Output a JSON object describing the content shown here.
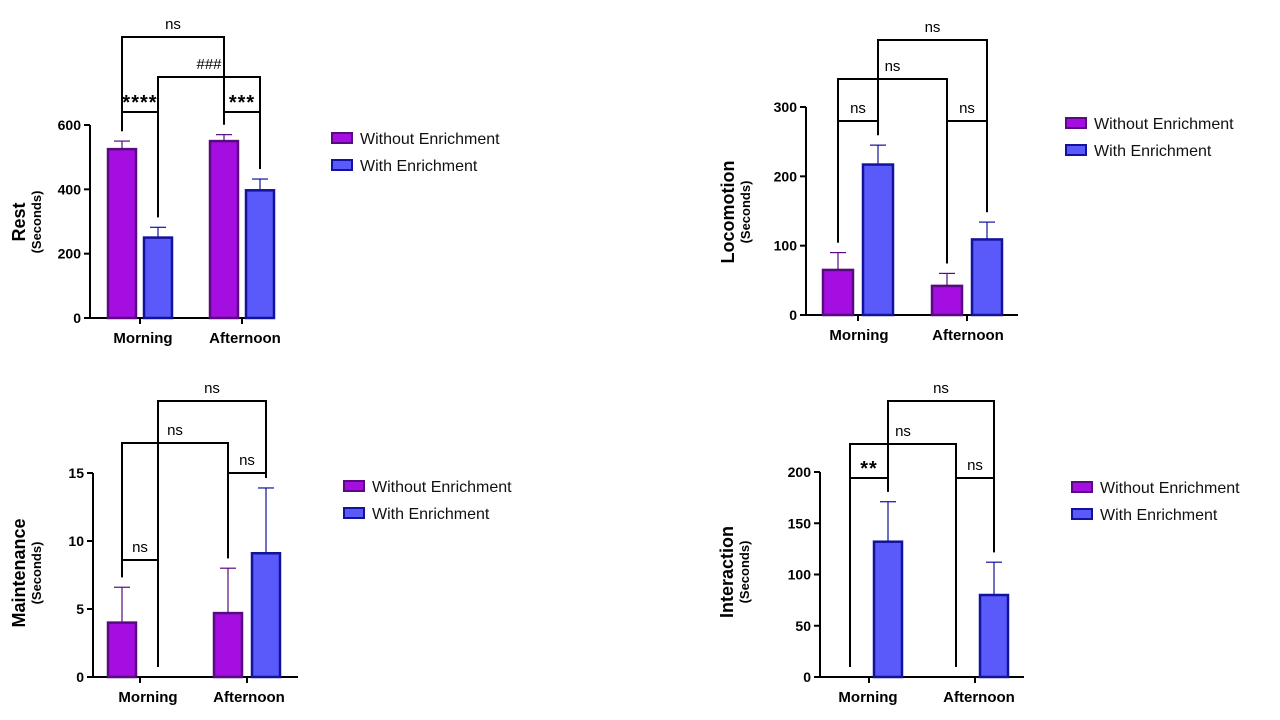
{
  "colors": {
    "without": "#a50ee0",
    "with": "#5a5afa",
    "without_border": "#5a0a80",
    "with_border": "#12129a"
  },
  "legend": {
    "without": "Without Enrichment",
    "with": "With Enrichment"
  },
  "chart_data": [
    {
      "type": "bar",
      "id": "rest",
      "ylabel": "Rest",
      "ylabel_unit": "(Seconds)",
      "categories": [
        "Morning",
        "Afternoon"
      ],
      "ylim": [
        0,
        600
      ],
      "yticks": [
        0,
        200,
        400,
        600
      ],
      "series": [
        {
          "name": "Without Enrichment",
          "values": [
            525,
            550
          ],
          "errors": [
            25,
            20
          ]
        },
        {
          "name": "With Enrichment",
          "values": [
            250,
            397
          ],
          "errors": [
            32,
            35
          ]
        }
      ],
      "comparisons": [
        {
          "label": "****",
          "from": [
            0,
            0
          ],
          "to": [
            0,
            1
          ]
        },
        {
          "label": "***",
          "from": [
            1,
            0
          ],
          "to": [
            1,
            1
          ]
        },
        {
          "label": "###",
          "from": [
            0,
            1
          ],
          "to": [
            1,
            1
          ]
        },
        {
          "label": "ns",
          "from": [
            0,
            0
          ],
          "to": [
            1,
            0
          ]
        }
      ]
    },
    {
      "type": "bar",
      "id": "locomotion",
      "ylabel": "Locomotion",
      "ylabel_unit": "(Seconds)",
      "categories": [
        "Morning",
        "Afternoon"
      ],
      "ylim": [
        0,
        300
      ],
      "yticks": [
        0,
        100,
        200,
        300
      ],
      "series": [
        {
          "name": "Without Enrichment",
          "values": [
            65,
            42
          ],
          "errors": [
            25,
            18
          ]
        },
        {
          "name": "With Enrichment",
          "values": [
            217,
            109
          ],
          "errors": [
            28,
            25
          ]
        }
      ],
      "comparisons": [
        {
          "label": "ns",
          "from": [
            0,
            0
          ],
          "to": [
            0,
            1
          ]
        },
        {
          "label": "ns",
          "from": [
            1,
            0
          ],
          "to": [
            1,
            1
          ]
        },
        {
          "label": "ns",
          "from": [
            0,
            0
          ],
          "to": [
            1,
            0
          ]
        },
        {
          "label": "ns",
          "from": [
            0,
            1
          ],
          "to": [
            1,
            1
          ]
        }
      ]
    },
    {
      "type": "bar",
      "id": "maintenance",
      "ylabel": "Maintenance",
      "ylabel_unit": "(Seconds)",
      "categories": [
        "Morning",
        "Afternoon"
      ],
      "ylim": [
        0,
        15
      ],
      "yticks": [
        0,
        5,
        10,
        15
      ],
      "series": [
        {
          "name": "Without Enrichment",
          "values": [
            4.0,
            4.7
          ],
          "errors": [
            2.6,
            3.3
          ]
        },
        {
          "name": "With Enrichment",
          "values": [
            0,
            9.1
          ],
          "errors": [
            0,
            4.8
          ]
        }
      ],
      "comparisons": [
        {
          "label": "ns",
          "from": [
            0,
            0
          ],
          "to": [
            0,
            1
          ]
        },
        {
          "label": "ns",
          "from": [
            1,
            0
          ],
          "to": [
            1,
            1
          ]
        },
        {
          "label": "ns",
          "from": [
            0,
            0
          ],
          "to": [
            1,
            0
          ]
        },
        {
          "label": "ns",
          "from": [
            0,
            1
          ],
          "to": [
            1,
            1
          ]
        }
      ]
    },
    {
      "type": "bar",
      "id": "interaction",
      "ylabel": "Interaction",
      "ylabel_unit": "(Seconds)",
      "categories": [
        "Morning",
        "Afternoon"
      ],
      "ylim": [
        0,
        200
      ],
      "yticks": [
        0,
        50,
        100,
        150,
        200
      ],
      "series": [
        {
          "name": "Without Enrichment",
          "values": [
            0,
            0
          ],
          "errors": [
            0,
            0
          ]
        },
        {
          "name": "With Enrichment",
          "values": [
            132,
            80
          ],
          "errors": [
            39,
            32
          ]
        }
      ],
      "comparisons": [
        {
          "label": "**",
          "from": [
            0,
            0
          ],
          "to": [
            0,
            1
          ]
        },
        {
          "label": "ns",
          "from": [
            1,
            0
          ],
          "to": [
            1,
            1
          ]
        },
        {
          "label": "ns",
          "from": [
            0,
            0
          ],
          "to": [
            1,
            0
          ]
        },
        {
          "label": "ns",
          "from": [
            0,
            1
          ],
          "to": [
            1,
            1
          ]
        }
      ]
    }
  ]
}
